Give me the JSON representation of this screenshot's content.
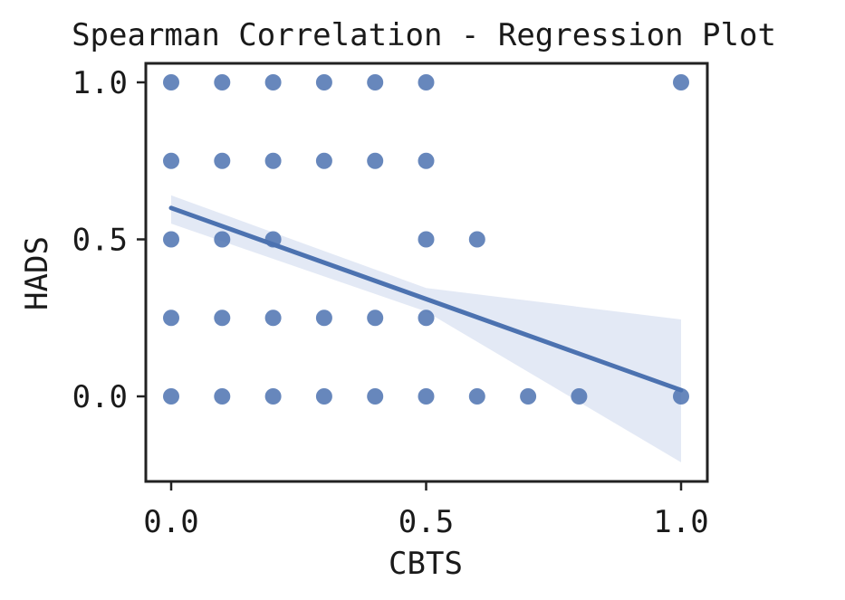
{
  "chart_data": {
    "type": "scatter",
    "title": "Spearman Correlation - Regression Plot",
    "xlabel": "CBTS",
    "ylabel": "HADS",
    "xlim": [
      -0.05,
      1.05
    ],
    "ylim": [
      -0.27,
      1.06
    ],
    "xticks": [
      0.0,
      0.5,
      1.0
    ],
    "yticks": [
      0.0,
      0.5,
      1.0
    ],
    "xtick_labels": [
      "0.0",
      "0.5",
      "1.0"
    ],
    "ytick_labels": [
      "0.0",
      "0.5",
      "1.0"
    ],
    "grid": false,
    "legend": "none",
    "series": [
      {
        "x": [
          0.0,
          0.1,
          0.2,
          0.3,
          0.4,
          0.5,
          1.0,
          0.0,
          0.1,
          0.2,
          0.3,
          0.4,
          0.5,
          0.0,
          0.1,
          0.2,
          0.5,
          0.6,
          0.0,
          0.1,
          0.2,
          0.3,
          0.4,
          0.5,
          0.0,
          0.1,
          0.2,
          0.3,
          0.4,
          0.5,
          0.6,
          0.7,
          0.8,
          1.0
        ],
        "y": [
          1.0,
          1.0,
          1.0,
          1.0,
          1.0,
          1.0,
          1.0,
          0.75,
          0.75,
          0.75,
          0.75,
          0.75,
          0.75,
          0.5,
          0.5,
          0.5,
          0.5,
          0.5,
          0.25,
          0.25,
          0.25,
          0.25,
          0.25,
          0.25,
          0.0,
          0.0,
          0.0,
          0.0,
          0.0,
          0.0,
          0.0,
          0.0,
          0.0,
          0.0
        ]
      }
    ],
    "regression": {
      "x": [
        0.0,
        1.0
      ],
      "y": [
        0.6,
        0.02
      ],
      "ci_upper": [
        [
          0.0,
          0.64
        ],
        [
          0.5,
          0.345
        ],
        [
          1.0,
          0.245
        ]
      ],
      "ci_lower": [
        [
          0.0,
          0.55
        ],
        [
          0.5,
          0.27
        ],
        [
          1.0,
          -0.21
        ]
      ]
    },
    "colors": {
      "points": "#4c72b0",
      "line": "#4c72b0",
      "band": "#dce4f2",
      "axes": "#222222"
    }
  }
}
